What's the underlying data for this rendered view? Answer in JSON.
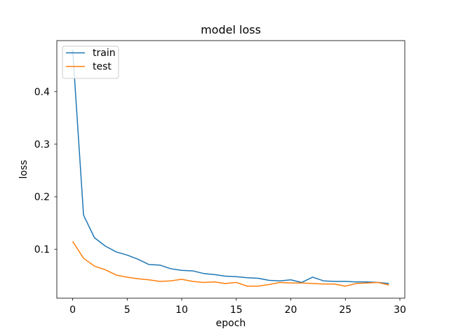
{
  "chart_data": {
    "type": "line",
    "title": "model loss",
    "xlabel": "epoch",
    "ylabel": "loss",
    "x": [
      0,
      1,
      2,
      3,
      4,
      5,
      6,
      7,
      8,
      9,
      10,
      11,
      12,
      13,
      14,
      15,
      16,
      17,
      18,
      19,
      20,
      21,
      22,
      23,
      24,
      25,
      26,
      27,
      28,
      29
    ],
    "series": [
      {
        "name": "train",
        "color": "#1f77b4",
        "values": [
          0.48,
          0.165,
          0.122,
          0.106,
          0.095,
          0.089,
          0.081,
          0.071,
          0.07,
          0.063,
          0.06,
          0.059,
          0.054,
          0.052,
          0.049,
          0.048,
          0.046,
          0.045,
          0.041,
          0.04,
          0.042,
          0.037,
          0.047,
          0.04,
          0.039,
          0.039,
          0.038,
          0.038,
          0.037,
          0.035
        ]
      },
      {
        "name": "test",
        "color": "#ff7f0e",
        "values": [
          0.115,
          0.083,
          0.068,
          0.061,
          0.051,
          0.047,
          0.044,
          0.042,
          0.039,
          0.04,
          0.043,
          0.039,
          0.037,
          0.038,
          0.035,
          0.037,
          0.03,
          0.03,
          0.033,
          0.037,
          0.036,
          0.036,
          0.035,
          0.034,
          0.034,
          0.03,
          0.035,
          0.036,
          0.037,
          0.032
        ]
      }
    ],
    "xticks": [
      0,
      5,
      10,
      15,
      20,
      25,
      30
    ],
    "yticks": [
      0.1,
      0.2,
      0.3,
      0.4
    ],
    "xlim": [
      -1.45,
      30.45
    ],
    "ylim": [
      0.007,
      0.497
    ],
    "grid": false,
    "background": "#ffffff",
    "spine_color": "#000000",
    "legend": {
      "position": "upper left",
      "border_color": "#cccccc",
      "fill": "rgba(255,255,255,0.8)"
    }
  }
}
